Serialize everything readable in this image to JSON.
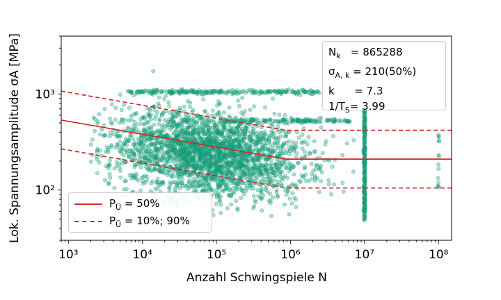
{
  "chart_data": {
    "type": "scatter",
    "title": "",
    "xlabel": "Anzahl Schwingspiele N",
    "ylabel": "Lok. Spannungsamplitude σA [MPa]",
    "xscale": "log",
    "yscale": "log",
    "xlim": [
      800,
      150000000
    ],
    "ylim": [
      30,
      4000
    ],
    "xticks": [
      "10³",
      "10⁴",
      "10⁵",
      "10⁶",
      "10⁷",
      "10⁸"
    ],
    "yticks": [
      "10²",
      "10³"
    ],
    "grid": false,
    "legend_placement": "lower-left",
    "scatter_color": "#1a9e7a",
    "line_color": "#d62728",
    "series": [
      {
        "name": "PÜ = 50%",
        "style": "solid",
        "x": [
          800,
          865288,
          150000000
        ],
        "y": [
          535,
          210,
          210
        ]
      },
      {
        "name": "PÜ = 10%; 90%",
        "style": "dashed",
        "x": [
          800,
          865288,
          150000000
        ],
        "y": [
          1070,
          419,
          419
        ]
      },
      {
        "style": "dashed",
        "x": [
          800,
          865288,
          150000000
        ],
        "y": [
          268,
          105,
          105
        ]
      }
    ],
    "legend": [
      {
        "label_main": "P",
        "label_sub": "Ü",
        "label_rest": " = 50%",
        "style": "solid"
      },
      {
        "label_main": "P",
        "label_sub": "Ü",
        "label_rest": " = 10%; 90%",
        "style": "dashed"
      }
    ],
    "annotation": {
      "lines": [
        {
          "key": "N",
          "sub": "k",
          "value": "   = 865288"
        },
        {
          "key": "σ",
          "sub": "A, k",
          "value": " = 210(50%)"
        },
        {
          "key": "k",
          "sub": "",
          "value": "      = 7.3"
        },
        {
          "key": "1/T",
          "sub": "S",
          "value": "= 3.99"
        }
      ]
    },
    "scatter_point_estimate": {
      "note_free_cloud": true
    }
  }
}
